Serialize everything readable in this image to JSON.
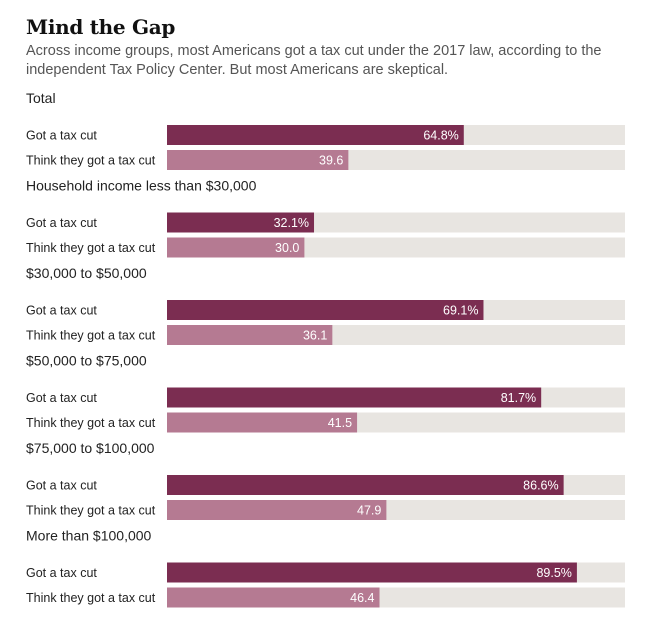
{
  "header": {
    "title": "Mind the Gap",
    "subtitle": "Across income groups, most Americans got a tax cut under the 2017 law, according to the independent Tax Policy Center. But most Americans are skeptical."
  },
  "colors": {
    "actual": "#7b2d51",
    "perceived": "#b57a92",
    "track": "#e8e5e1",
    "label_text": "#ffffff"
  },
  "chart_data": {
    "type": "bar",
    "orientation": "horizontal",
    "xlim": [
      0,
      100
    ],
    "grid": false,
    "row_labels": [
      "Got a tax cut",
      "Think they got a tax cut"
    ],
    "categories": [
      "Total",
      "Household income less than $30,000",
      "$30,000 to $50,000",
      "$50,000 to $75,000",
      "$75,000 to $100,000",
      "More than $100,000"
    ],
    "series": [
      {
        "values": [
          64.8,
          32.1,
          69.1,
          81.7,
          86.6,
          89.5
        ],
        "labels": [
          "64.8%",
          "32.1%",
          "69.1%",
          "81.7%",
          "86.6%",
          "89.5%"
        ]
      },
      {
        "values": [
          39.6,
          30.0,
          36.1,
          41.5,
          47.9,
          46.4
        ],
        "labels": [
          "39.6",
          "30.0",
          "36.1",
          "41.5",
          "47.9",
          "46.4"
        ]
      }
    ]
  }
}
